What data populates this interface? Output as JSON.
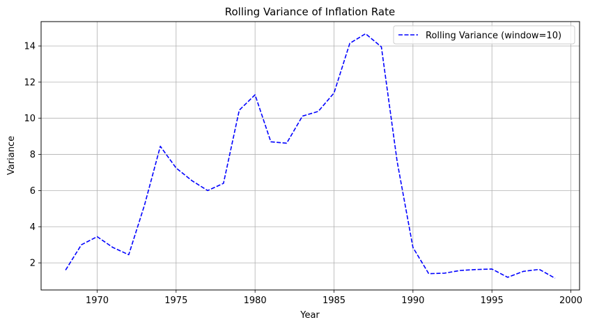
{
  "chart_data": {
    "type": "line",
    "title": "Rolling Variance of Inflation Rate",
    "xlabel": "Year",
    "ylabel": "Variance",
    "xlim": [
      1966.45,
      2000.55
    ],
    "ylim": [
      0.5,
      15.35
    ],
    "xticks": [
      1970,
      1975,
      1980,
      1985,
      1990,
      1995,
      2000
    ],
    "yticks": [
      2,
      4,
      6,
      8,
      10,
      12,
      14
    ],
    "grid": true,
    "legend_position": "upper-right",
    "series": [
      {
        "name": "Rolling Variance (window=10)",
        "color": "#0000ff",
        "line_style": "dashed",
        "x": [
          1968,
          1969,
          1970,
          1971,
          1972,
          1973,
          1974,
          1975,
          1976,
          1977,
          1978,
          1979,
          1980,
          1981,
          1982,
          1983,
          1984,
          1985,
          1986,
          1987,
          1988,
          1989,
          1990,
          1991,
          1992,
          1993,
          1994,
          1995,
          1996,
          1997,
          1998,
          1999
        ],
        "values": [
          1.6,
          3.0,
          3.45,
          2.85,
          2.45,
          5.2,
          8.45,
          7.25,
          6.55,
          6.0,
          6.4,
          10.45,
          11.3,
          8.7,
          8.62,
          10.12,
          10.38,
          11.4,
          14.15,
          14.68,
          13.95,
          7.6,
          2.85,
          1.4,
          1.43,
          1.58,
          1.63,
          1.66,
          1.2,
          1.53,
          1.64,
          1.15
        ]
      }
    ]
  }
}
